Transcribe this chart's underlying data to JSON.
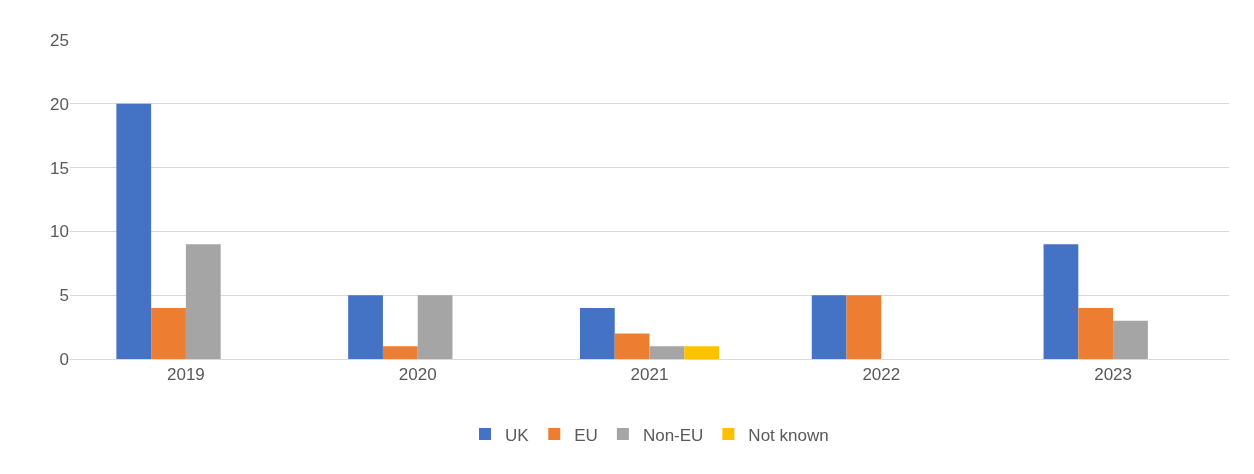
{
  "chart_data": {
    "type": "bar",
    "categories": [
      "2019",
      "2020",
      "2021",
      "2022",
      "2023"
    ],
    "series": [
      {
        "name": "UK",
        "color": "#4472c4",
        "values": [
          20,
          5,
          4,
          5,
          9
        ]
      },
      {
        "name": "EU",
        "color": "#ed7d31",
        "values": [
          4,
          1,
          2,
          5,
          4
        ]
      },
      {
        "name": "Non-EU",
        "color": "#a5a5a5",
        "values": [
          9,
          5,
          1,
          0,
          3
        ]
      },
      {
        "name": "Not known",
        "color": "#ffc000",
        "values": [
          0,
          0,
          1,
          0,
          0
        ]
      }
    ],
    "ylim": [
      0,
      25
    ],
    "yticks": [
      0,
      5,
      10,
      15,
      20,
      25
    ],
    "grid": "y",
    "legend": "bottom"
  }
}
